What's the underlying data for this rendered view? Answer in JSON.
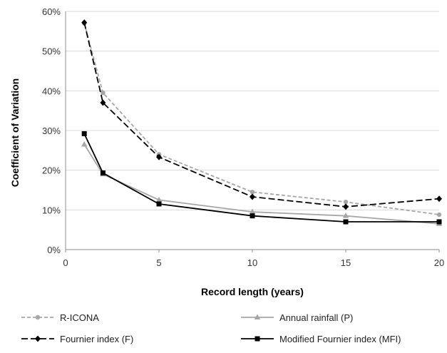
{
  "chart_data": {
    "type": "line",
    "xlabel": "Record length (years)",
    "ylabel": "Coefficient of Variation",
    "xlim": [
      0,
      20
    ],
    "ylim": [
      0,
      0.6
    ],
    "x_ticks": [
      "0",
      "5",
      "10",
      "15",
      "20"
    ],
    "y_ticks": [
      "0%",
      "10%",
      "20%",
      "30%",
      "40%",
      "50%",
      "60%"
    ],
    "grid": "horizontal",
    "legend_position": "bottom",
    "series": [
      {
        "name": "R-ICONA",
        "color": "#a6a6a6",
        "dash": "dashed",
        "marker": "circle",
        "points": [
          [
            1,
            0.57
          ],
          [
            2,
            0.395
          ],
          [
            5,
            0.24
          ],
          [
            10,
            0.145
          ],
          [
            15,
            0.12
          ],
          [
            20,
            0.088
          ]
        ]
      },
      {
        "name": "Annual rainfall (P)",
        "color": "#a6a6a6",
        "dash": "solid",
        "marker": "triangle",
        "points": [
          [
            1,
            0.265
          ],
          [
            2,
            0.19
          ],
          [
            5,
            0.125
          ],
          [
            10,
            0.095
          ],
          [
            15,
            0.085
          ],
          [
            20,
            0.065
          ]
        ]
      },
      {
        "name": "Fournier index (F)",
        "color": "#000000",
        "dash": "longdash",
        "marker": "diamond",
        "points": [
          [
            1,
            0.572
          ],
          [
            2,
            0.37
          ],
          [
            5,
            0.233
          ],
          [
            10,
            0.133
          ],
          [
            15,
            0.108
          ],
          [
            20,
            0.128
          ]
        ]
      },
      {
        "name": "Modified Fournier index (MFI)",
        "color": "#000000",
        "dash": "solid",
        "marker": "square",
        "points": [
          [
            1,
            0.292
          ],
          [
            2,
            0.193
          ],
          [
            5,
            0.115
          ],
          [
            10,
            0.085
          ],
          [
            15,
            0.07
          ],
          [
            20,
            0.07
          ]
        ]
      }
    ]
  }
}
